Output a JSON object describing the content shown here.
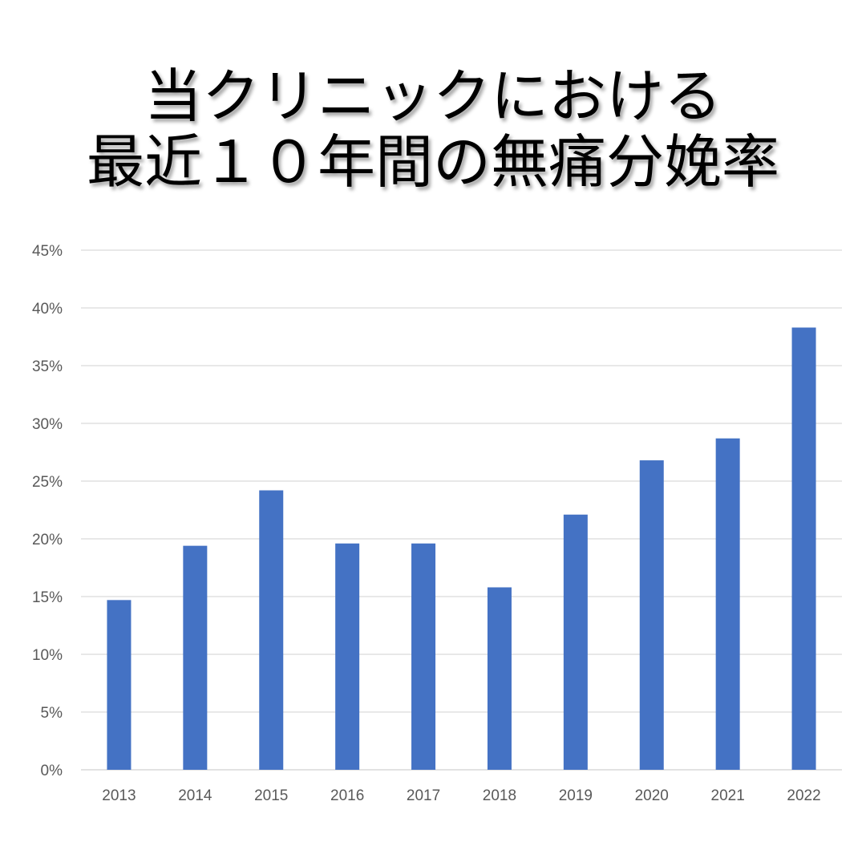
{
  "chart_data": {
    "type": "bar",
    "title_lines": [
      "当クリニックにおける",
      "最近１０年間の無痛分娩率"
    ],
    "categories": [
      "2013",
      "2014",
      "2015",
      "2016",
      "2017",
      "2018",
      "2019",
      "2020",
      "2021",
      "2022"
    ],
    "values": [
      14.7,
      19.4,
      24.2,
      19.6,
      19.6,
      15.8,
      22.1,
      26.8,
      28.7,
      38.3
    ],
    "ylim": [
      0,
      45
    ],
    "y_ticks": [
      "0%",
      "5%",
      "10%",
      "15%",
      "20%",
      "25%",
      "30%",
      "35%",
      "40%",
      "45%"
    ],
    "xlabel": "",
    "ylabel": "",
    "grid": true,
    "legend": "none",
    "colors": {
      "bar": "#4472C4",
      "grid": "#D9D9D9",
      "tick_text": "#595959"
    }
  }
}
